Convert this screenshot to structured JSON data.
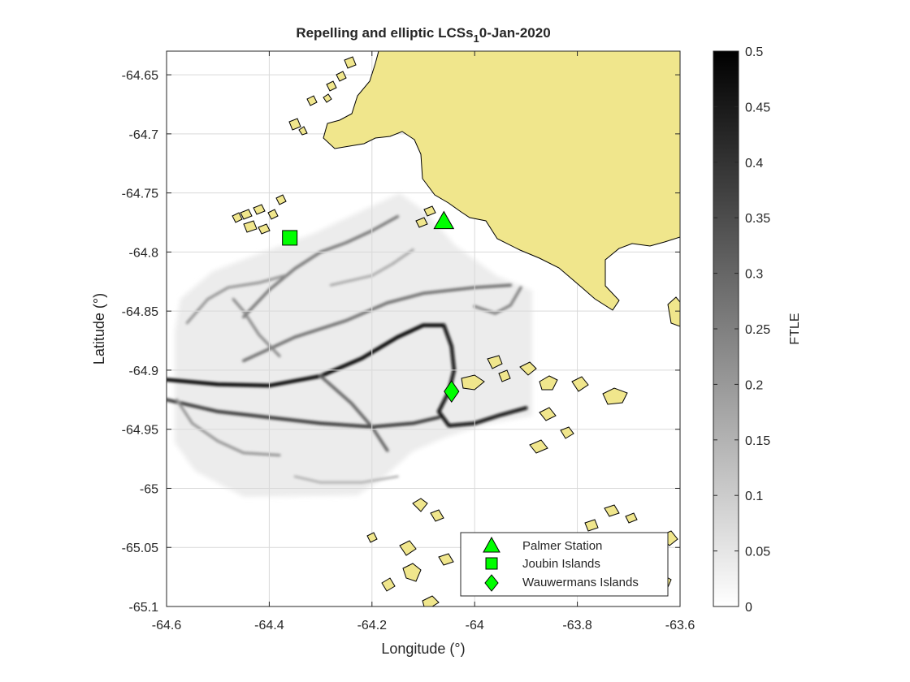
{
  "chart_data": {
    "type": "heatmap",
    "title": "Repelling and elliptic LCSs",
    "title_subscript": "1",
    "title_suffix": "0-Jan-2020",
    "xlabel": "Longitude (°)",
    "ylabel": "Latitude (°)",
    "xlim": [
      -64.6,
      -63.6
    ],
    "ylim": [
      -65.1,
      -64.63
    ],
    "xticks": [
      -64.6,
      -64.4,
      -64.2,
      -64.0,
      -63.8,
      -63.6
    ],
    "xtick_labels": [
      "-64.6",
      "-64.4",
      "-64.2",
      "-64",
      "-63.8",
      "-63.6"
    ],
    "yticks": [
      -64.65,
      -64.7,
      -64.75,
      -64.8,
      -64.85,
      -64.9,
      -64.95,
      -65.0,
      -65.05,
      -65.1
    ],
    "ytick_labels": [
      "-64.65",
      "-64.7",
      "-64.75",
      "-64.8",
      "-64.85",
      "-64.9",
      "-64.95",
      "-65",
      "-65.05",
      "-65.1"
    ],
    "grid": true,
    "colorbar": {
      "label": "FTLE",
      "range": [
        0,
        0.5
      ],
      "ticks": [
        0,
        0.05,
        0.1,
        0.15,
        0.2,
        0.25,
        0.3,
        0.35,
        0.4,
        0.45,
        0.5
      ],
      "tick_labels": [
        "0",
        "0.05",
        "0.1",
        "0.15",
        "0.2",
        "0.25",
        "0.3",
        "0.35",
        "0.4",
        "0.45",
        "0.5"
      ],
      "colormap": "gray-reversed"
    },
    "land_color": "#F0E68C",
    "marker_color": "#00FF00",
    "stations": [
      {
        "name": "Palmer Station",
        "marker": "triangle",
        "lon": -64.06,
        "lat": -64.774
      },
      {
        "name": "Joubin Islands",
        "marker": "square",
        "lon": -64.36,
        "lat": -64.788
      },
      {
        "name": "Wauwermans Islands",
        "marker": "diamond",
        "lon": -64.045,
        "lat": -64.918
      }
    ],
    "legend_position": "bottom-right",
    "ridges": [
      {
        "strength": 0.5,
        "points": [
          [
            -64.6,
            -64.908
          ],
          [
            -64.5,
            -64.912
          ],
          [
            -64.4,
            -64.913
          ],
          [
            -64.3,
            -64.905
          ],
          [
            -64.22,
            -64.89
          ],
          [
            -64.15,
            -64.872
          ],
          [
            -64.1,
            -64.862
          ],
          [
            -64.06,
            -64.862
          ]
        ]
      },
      {
        "strength": 0.48,
        "points": [
          [
            -64.06,
            -64.862
          ],
          [
            -64.045,
            -64.88
          ],
          [
            -64.04,
            -64.9
          ],
          [
            -64.05,
            -64.918
          ],
          [
            -64.07,
            -64.935
          ],
          [
            -64.05,
            -64.947
          ],
          [
            -64.0,
            -64.945
          ],
          [
            -63.95,
            -64.938
          ],
          [
            -63.9,
            -64.932
          ]
        ]
      },
      {
        "strength": 0.4,
        "points": [
          [
            -64.6,
            -64.925
          ],
          [
            -64.5,
            -64.935
          ],
          [
            -64.4,
            -64.94
          ],
          [
            -64.3,
            -64.945
          ],
          [
            -64.2,
            -64.948
          ],
          [
            -64.12,
            -64.945
          ],
          [
            -64.07,
            -64.94
          ]
        ]
      },
      {
        "strength": 0.32,
        "points": [
          [
            -64.3,
            -64.905
          ],
          [
            -64.24,
            -64.928
          ],
          [
            -64.2,
            -64.948
          ],
          [
            -64.17,
            -64.968
          ]
        ]
      },
      {
        "strength": 0.3,
        "points": [
          [
            -64.45,
            -64.892
          ],
          [
            -64.35,
            -64.872
          ],
          [
            -64.25,
            -64.858
          ],
          [
            -64.17,
            -64.843
          ],
          [
            -64.1,
            -64.835
          ],
          [
            -64.0,
            -64.83
          ],
          [
            -63.93,
            -64.828
          ]
        ]
      },
      {
        "strength": 0.28,
        "points": [
          [
            -64.45,
            -64.855
          ],
          [
            -64.4,
            -64.832
          ],
          [
            -64.35,
            -64.814
          ],
          [
            -64.3,
            -64.8
          ],
          [
            -64.25,
            -64.792
          ],
          [
            -64.2,
            -64.782
          ],
          [
            -64.15,
            -64.77
          ]
        ]
      },
      {
        "strength": 0.26,
        "points": [
          [
            -64.0,
            -64.846
          ],
          [
            -63.96,
            -64.852
          ],
          [
            -63.93,
            -64.845
          ],
          [
            -63.91,
            -64.83
          ]
        ]
      },
      {
        "strength": 0.22,
        "points": [
          [
            -64.56,
            -64.86
          ],
          [
            -64.52,
            -64.84
          ],
          [
            -64.48,
            -64.83
          ],
          [
            -64.42,
            -64.826
          ],
          [
            -64.37,
            -64.82
          ]
        ]
      },
      {
        "strength": 0.24,
        "points": [
          [
            -64.47,
            -64.84
          ],
          [
            -64.45,
            -64.85
          ],
          [
            -64.42,
            -64.87
          ],
          [
            -64.38,
            -64.888
          ]
        ]
      },
      {
        "strength": 0.22,
        "points": [
          [
            -64.58,
            -64.925
          ],
          [
            -64.55,
            -64.945
          ],
          [
            -64.5,
            -64.96
          ],
          [
            -64.45,
            -64.97
          ],
          [
            -64.38,
            -64.972
          ]
        ]
      },
      {
        "strength": 0.18,
        "points": [
          [
            -64.12,
            -64.798
          ],
          [
            -64.16,
            -64.81
          ],
          [
            -64.2,
            -64.82
          ],
          [
            -64.28,
            -64.828
          ]
        ]
      },
      {
        "strength": 0.16,
        "points": [
          [
            -64.35,
            -64.99
          ],
          [
            -64.3,
            -64.995
          ],
          [
            -64.22,
            -64.995
          ],
          [
            -64.15,
            -64.99
          ]
        ]
      }
    ]
  },
  "legend_entries": [
    "Palmer Station",
    "Joubin Islands",
    "Wauwermans Islands"
  ]
}
